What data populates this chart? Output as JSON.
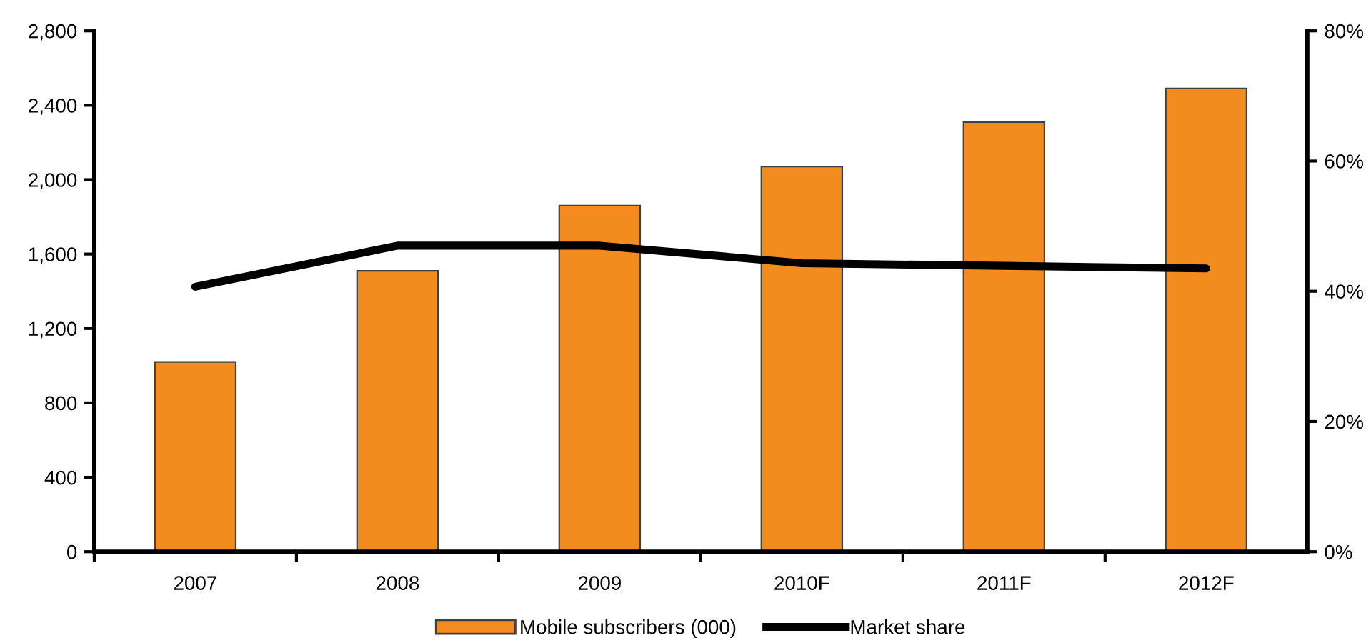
{
  "chart_data": {
    "type": "bar",
    "categories": [
      "2007",
      "2008",
      "2009",
      "2010F",
      "2011F",
      "2012F"
    ],
    "series": [
      {
        "name": "Mobile subscribers (000)",
        "color": "#f28c1f",
        "values": [
          1020,
          1510,
          1860,
          2070,
          2310,
          2490
        ]
      },
      {
        "name": "Market share",
        "type": "line",
        "axis": "y2",
        "color": "#000000",
        "values": [
          40.7,
          47.0,
          47.0,
          44.3,
          43.9,
          43.5
        ]
      }
    ],
    "ylim": [
      0,
      2800
    ],
    "yticks": [
      {
        "value": 0,
        "label": "0"
      },
      {
        "value": 400,
        "label": "400"
      },
      {
        "value": 800,
        "label": "800"
      },
      {
        "value": 1200,
        "label": "1,200"
      },
      {
        "value": 1600,
        "label": "1,600"
      },
      {
        "value": 2000,
        "label": "2,000"
      },
      {
        "value": 2400,
        "label": "2,400"
      },
      {
        "value": 2800,
        "label": "2,800"
      }
    ],
    "y2lim": [
      0,
      80
    ],
    "y2ticks": [
      {
        "value": 0,
        "label": "0%"
      },
      {
        "value": 20,
        "label": "20%"
      },
      {
        "value": 40,
        "label": "40%"
      },
      {
        "value": 60,
        "label": "60%"
      },
      {
        "value": 80,
        "label": "80%"
      }
    ],
    "grid": false,
    "legend": "bottom",
    "marker": "none"
  }
}
